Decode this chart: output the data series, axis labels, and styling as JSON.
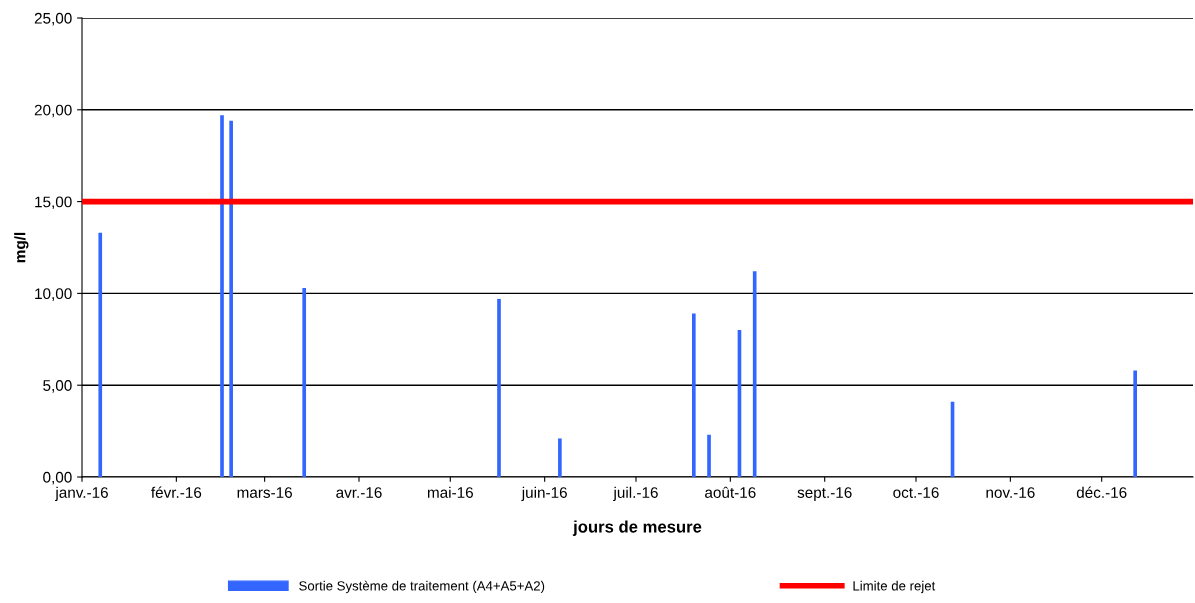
{
  "chart_data": {
    "type": "bar",
    "xlabel": "jours de mesure",
    "ylabel": "mg/l",
    "x": [
      "2016-01-07",
      "2016-02-16",
      "2016-02-19",
      "2016-03-14",
      "2016-05-17",
      "2016-06-06",
      "2016-07-20",
      "2016-07-25",
      "2016-08-04",
      "2016-08-09",
      "2016-10-13",
      "2016-12-12"
    ],
    "series": [
      {
        "name": "Sortie Système de traitement (A4+A5+A2)",
        "color": "#3366ff",
        "values": [
          13.3,
          19.7,
          19.4,
          10.3,
          9.7,
          2.1,
          8.9,
          2.3,
          8.0,
          11.2,
          4.1,
          5.8
        ]
      }
    ],
    "ref_lines": [
      {
        "axis": "y",
        "value": 15,
        "label": "Limite de rejet",
        "color": "#ff0000",
        "line_style": "solid"
      }
    ],
    "xlim": [
      "2016-01-01",
      "2016-12-31"
    ],
    "xticks": [
      {
        "value": "2016-01-01",
        "label": "janv.-16"
      },
      {
        "value": "2016-02-01",
        "label": "févr.-16"
      },
      {
        "value": "2016-03-01",
        "label": "mars-16"
      },
      {
        "value": "2016-04-01",
        "label": "avr.-16"
      },
      {
        "value": "2016-05-01",
        "label": "mai-16"
      },
      {
        "value": "2016-06-01",
        "label": "juin-16"
      },
      {
        "value": "2016-07-01",
        "label": "juil.-16"
      },
      {
        "value": "2016-08-01",
        "label": "août-16"
      },
      {
        "value": "2016-09-01",
        "label": "sept.-16"
      },
      {
        "value": "2016-10-01",
        "label": "oct.-16"
      },
      {
        "value": "2016-11-01",
        "label": "nov.-16"
      },
      {
        "value": "2016-12-01",
        "label": "déc.-16"
      }
    ],
    "ylim": [
      0,
      25
    ],
    "yticks": [
      {
        "value": 0,
        "label": "0,00"
      },
      {
        "value": 5,
        "label": "5,00"
      },
      {
        "value": 10,
        "label": "10,00"
      },
      {
        "value": 15,
        "label": "15,00"
      },
      {
        "value": 20,
        "label": "20,00"
      },
      {
        "value": 25,
        "label": "25,00"
      }
    ],
    "grid": "y",
    "legend": "bottom"
  }
}
